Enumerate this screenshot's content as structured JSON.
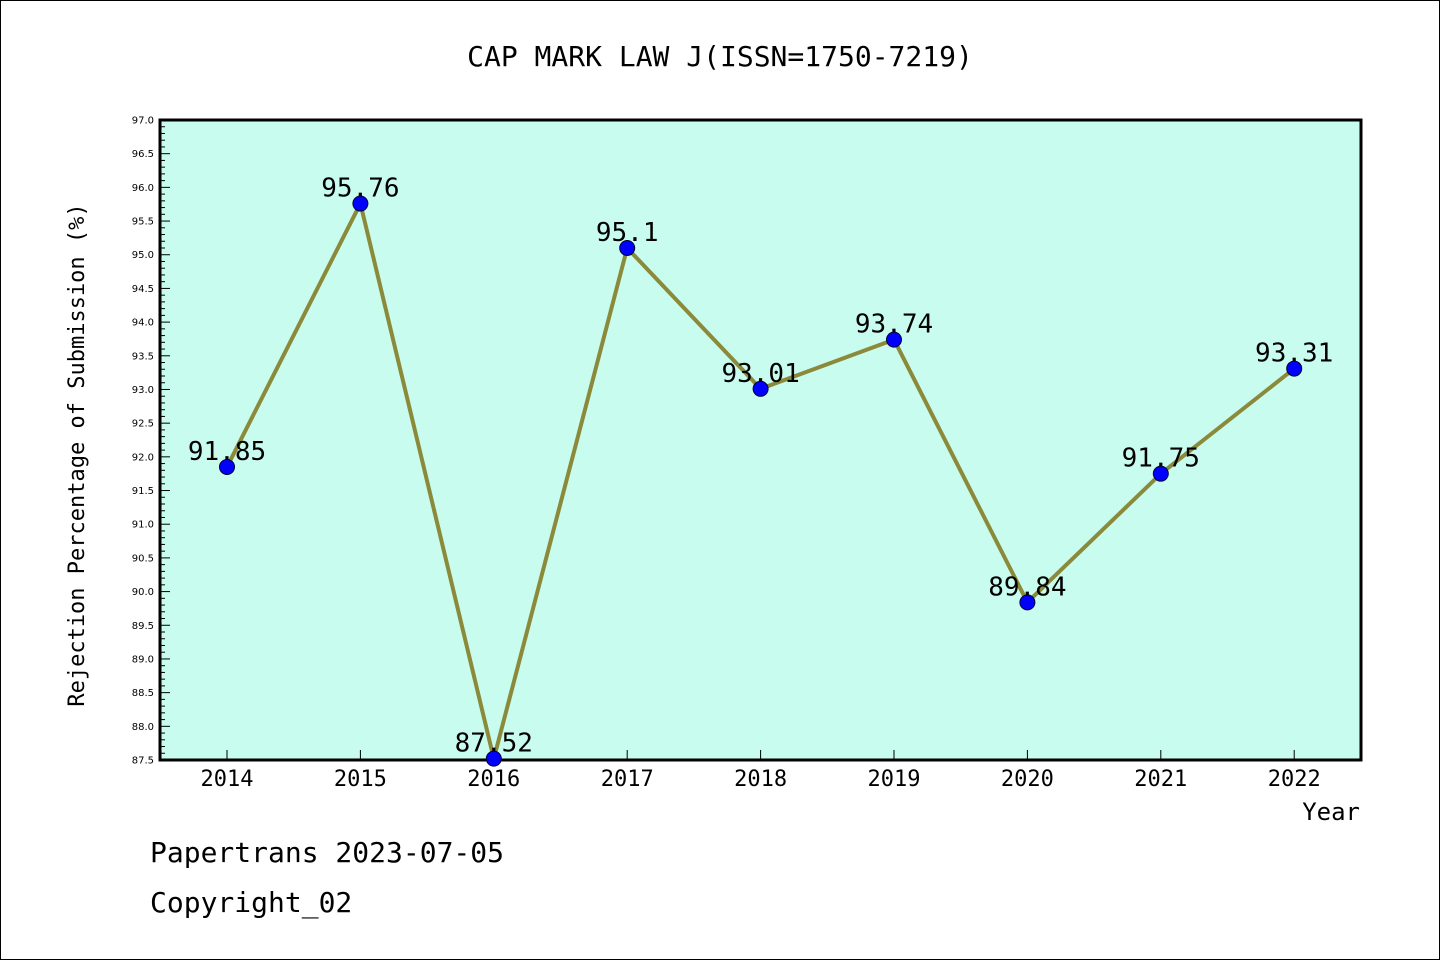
{
  "chart_data": {
    "type": "line",
    "title": "CAP MARK LAW J(ISSN=1750-7219)",
    "xlabel": "Year",
    "ylabel": "Rejection Percentage of Submission (%)",
    "categories": [
      "2014",
      "2015",
      "2016",
      "2017",
      "2018",
      "2019",
      "2020",
      "2021",
      "2022"
    ],
    "series": [
      {
        "values": [
          91.85,
          95.76,
          87.52,
          95.1,
          93.01,
          93.74,
          89.84,
          91.75,
          93.31
        ],
        "labels": [
          "91.85",
          "95.76",
          "87.52",
          "95.1",
          "93.01",
          "93.74",
          "89.84",
          "91.75",
          "93.31"
        ]
      }
    ],
    "ylim": [
      87.5,
      97.0
    ],
    "yticks": [
      "87.5",
      "88.0",
      "88.5",
      "89.0",
      "89.5",
      "90.0",
      "90.5",
      "91.0",
      "91.5",
      "92.0",
      "92.5",
      "93.0",
      "93.5",
      "94.0",
      "94.5",
      "95.0",
      "95.5",
      "96.0",
      "96.5",
      "97.0"
    ],
    "grid": false,
    "colors": {
      "plot_background": "#c8fcee",
      "line": "#8a8a3a",
      "marker": "#0000ff"
    }
  },
  "footer": {
    "line1": "Papertrans 2023-07-05",
    "line2": "Copyright_02"
  }
}
